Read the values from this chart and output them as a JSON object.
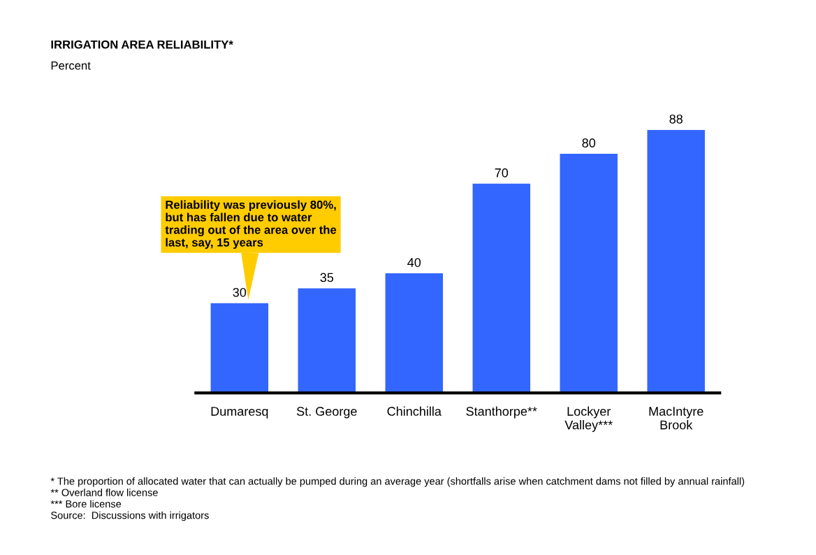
{
  "chart_data": {
    "type": "bar",
    "title": "IRRIGATION AREA RELIABILITY*",
    "subtitle": "Percent",
    "categories": [
      "Dumaresq",
      "St. George",
      "Chinchilla",
      "Stanthorpe**",
      "Lockyer Valley***",
      "MacIntyre Brook"
    ],
    "values": [
      30,
      35,
      40,
      70,
      80,
      88
    ],
    "color": "#3366ff",
    "data_labels": true,
    "grid": false,
    "legend": false,
    "annotations": [
      "Reliability was previously 80%, but has fallen due to water trading out of the area over the last, say, 15 years",
      "* The proportion of allocated water that can actually be pumped during an average year (shortfalls arise when catchment dams not filled by annual rainfall)",
      "** Overland flow license",
      "*** Bore license",
      "Source:  Discussions with irrigators"
    ]
  }
}
